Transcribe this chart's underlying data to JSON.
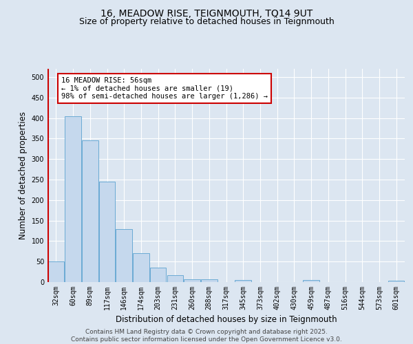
{
  "title_line1": "16, MEADOW RISE, TEIGNMOUTH, TQ14 9UT",
  "title_line2": "Size of property relative to detached houses in Teignmouth",
  "xlabel": "Distribution of detached houses by size in Teignmouth",
  "ylabel": "Number of detached properties",
  "categories": [
    "32sqm",
    "60sqm",
    "89sqm",
    "117sqm",
    "146sqm",
    "174sqm",
    "203sqm",
    "231sqm",
    "260sqm",
    "288sqm",
    "317sqm",
    "345sqm",
    "373sqm",
    "402sqm",
    "430sqm",
    "459sqm",
    "487sqm",
    "516sqm",
    "544sqm",
    "573sqm",
    "601sqm"
  ],
  "values": [
    50,
    405,
    345,
    245,
    130,
    70,
    35,
    17,
    7,
    7,
    0,
    5,
    0,
    0,
    0,
    5,
    0,
    0,
    0,
    0,
    3
  ],
  "bar_color": "#c5d8ed",
  "bar_edge_color": "#6aaad4",
  "marker_color": "#cc0000",
  "annotation_text": "16 MEADOW RISE: 56sqm\n← 1% of detached houses are smaller (19)\n98% of semi-detached houses are larger (1,286) →",
  "annotation_box_facecolor": "#ffffff",
  "annotation_box_edgecolor": "#cc0000",
  "ylim": [
    0,
    520
  ],
  "yticks": [
    0,
    50,
    100,
    150,
    200,
    250,
    300,
    350,
    400,
    450,
    500
  ],
  "figure_bg": "#dce6f1",
  "plot_bg": "#dce6f1",
  "grid_color": "#ffffff",
  "footer_line1": "Contains HM Land Registry data © Crown copyright and database right 2025.",
  "footer_line2": "Contains public sector information licensed under the Open Government Licence v3.0.",
  "title_fontsize": 10,
  "subtitle_fontsize": 9,
  "axis_label_fontsize": 8.5,
  "tick_fontsize": 7,
  "annotation_fontsize": 7.5,
  "footer_fontsize": 6.5
}
